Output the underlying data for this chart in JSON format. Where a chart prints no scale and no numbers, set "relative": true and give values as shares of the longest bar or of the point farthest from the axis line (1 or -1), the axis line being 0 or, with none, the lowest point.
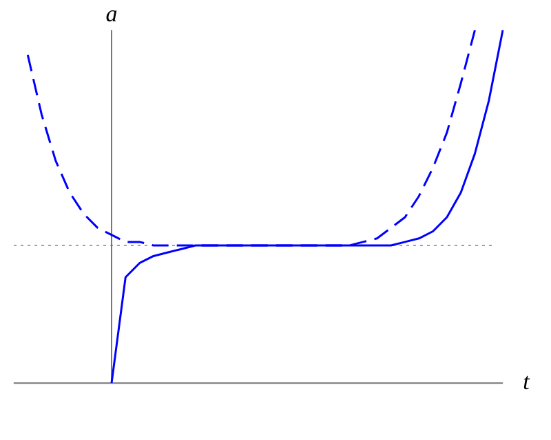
{
  "chart_data": {
    "type": "line",
    "relative": true,
    "xlabel": "t",
    "ylabel": "a",
    "legend": false,
    "categories": [
      null,
      null,
      null,
      null,
      null,
      null,
      null,
      null,
      null,
      null,
      null,
      null,
      null,
      null,
      null,
      null,
      null,
      null,
      null,
      null,
      null,
      null,
      null,
      null,
      null,
      null,
      null,
      null,
      null,
      null,
      null,
      null,
      null,
      null,
      null,
      null
    ],
    "series": [
      {
        "color": "#0000ff",
        "line_style": "dashed",
        "values": [
          null,
          0.93,
          0.76,
          0.63,
          0.54,
          0.48,
          0.44,
          0.42,
          0.4,
          0.4,
          0.39,
          0.39,
          0.39,
          0.39,
          0.39,
          0.39,
          0.39,
          0.39,
          0.39,
          0.39,
          0.39,
          0.39,
          0.39,
          0.39,
          0.39,
          0.4,
          0.41,
          0.44,
          0.47,
          0.53,
          0.61,
          0.71,
          0.85,
          1.0,
          null,
          null
        ]
      },
      {
        "color": "#0000ff",
        "line_style": "solid",
        "values": [
          null,
          null,
          null,
          null,
          null,
          null,
          null,
          0,
          0.3,
          0.34,
          0.36,
          0.37,
          0.38,
          0.39,
          0.39,
          0.39,
          0.39,
          0.39,
          0.39,
          0.39,
          0.39,
          0.39,
          0.39,
          0.39,
          0.39,
          0.39,
          0.39,
          0.39,
          0.4,
          0.41,
          0.43,
          0.47,
          0.54,
          0.65,
          0.8,
          1.0
        ]
      }
    ],
    "ref_lines": [
      {
        "axis": "y",
        "value": 0.39,
        "color": "#9999dd",
        "line_style": "dotted"
      }
    ]
  }
}
